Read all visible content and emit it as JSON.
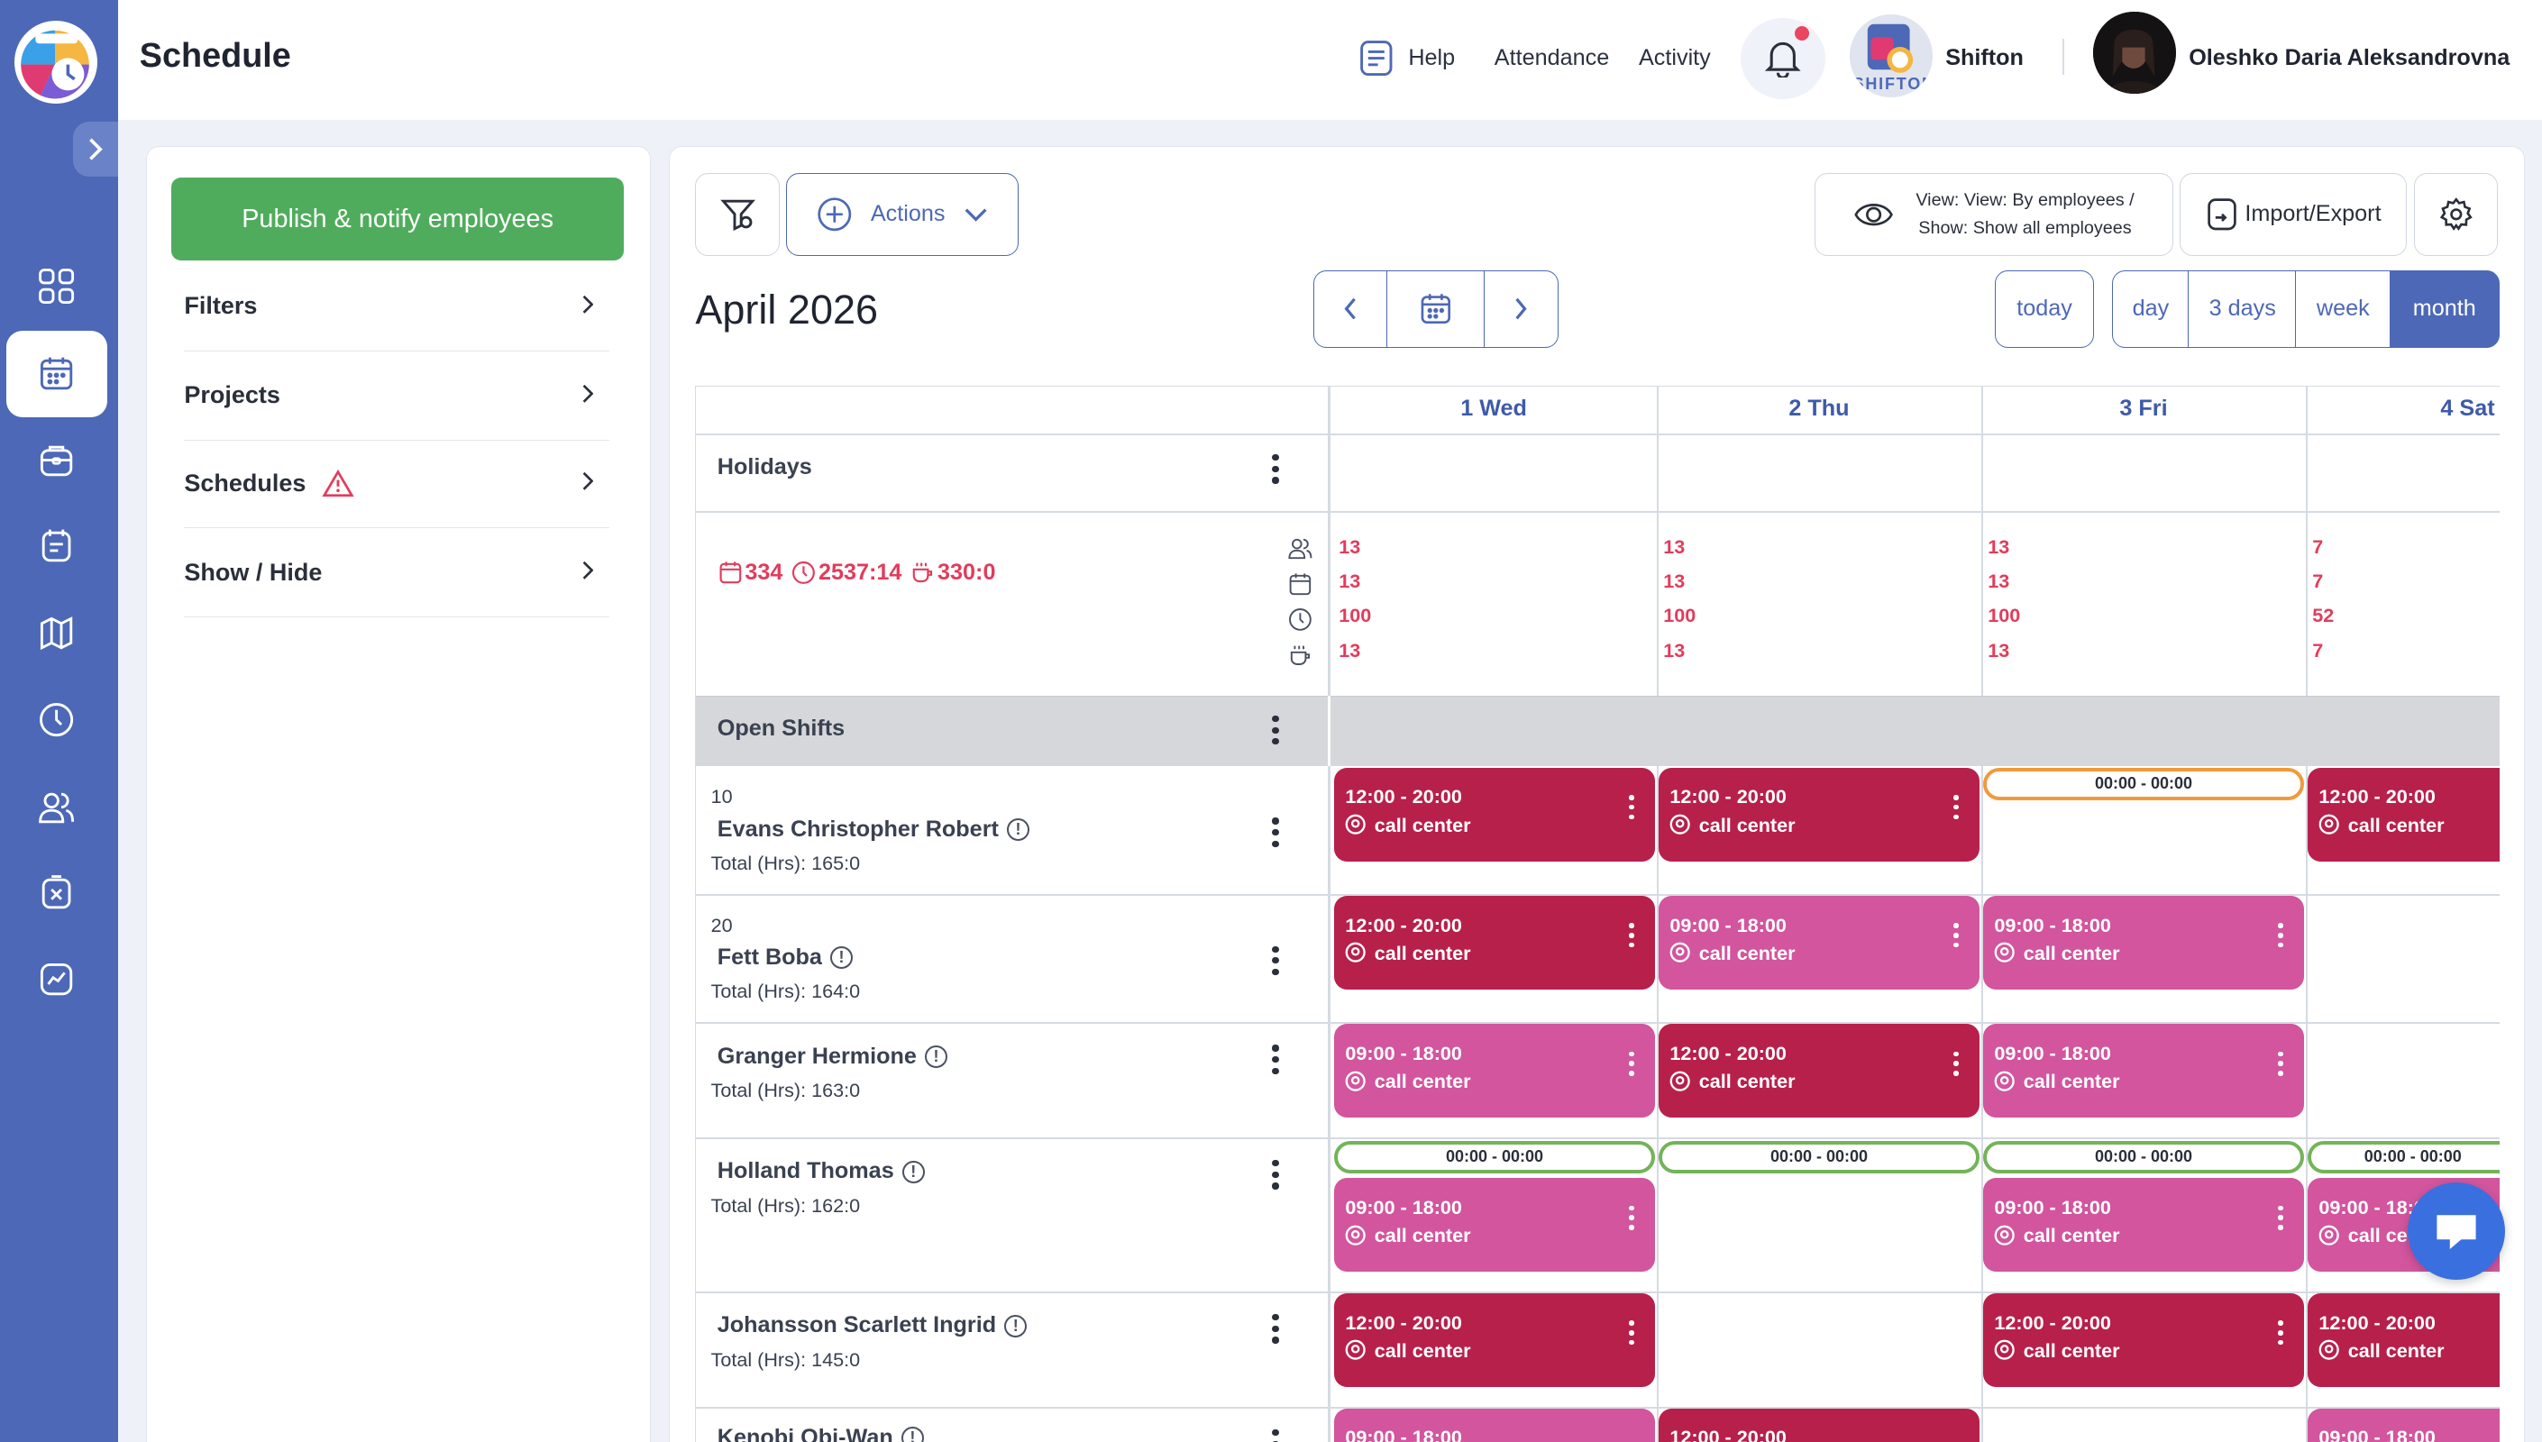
{
  "header": {
    "page_title": "Schedule",
    "help": "Help",
    "attendance": "Attendance",
    "activity": "Activity",
    "company_name": "Shifton",
    "company_logo_text": "SHIFTON",
    "user_name": "Oleshko Daria Aleksandrovna"
  },
  "sidebar_nav": [
    "dashboard-icon",
    "calendar-icon",
    "briefcase-icon",
    "clipboard-calendar-icon",
    "map-icon",
    "clock-icon",
    "users-icon",
    "cancel-document-icon",
    "chart-icon"
  ],
  "left_panel": {
    "publish": "Publish & notify employees",
    "items": [
      "Filters",
      "Projects",
      "Schedules",
      "Show / Hide"
    ]
  },
  "toolbar": {
    "actions": "Actions",
    "view_line1": "View: View: By employees /",
    "view_line2": "Show: Show all employees",
    "import_export": "Import/Export"
  },
  "calendar": {
    "month_title": "April 2026",
    "today": "today",
    "views": [
      "day",
      "3 days",
      "week",
      "month"
    ],
    "active_view": "month",
    "days": [
      "1 Wed",
      "2 Thu",
      "3 Fri",
      "4 Sat"
    ]
  },
  "rows": {
    "holidays": "Holidays",
    "summary": {
      "shifts": "334",
      "hours": "2537:14",
      "breaks": "330:0"
    },
    "day_stats": [
      [
        "13",
        "13",
        "100",
        "13"
      ],
      [
        "13",
        "13",
        "100",
        "13"
      ],
      [
        "13",
        "13",
        "100",
        "13"
      ],
      [
        "7",
        "7",
        "52",
        "7"
      ]
    ],
    "open_shifts": "Open Shifts",
    "employees": [
      {
        "number": "10",
        "name": "Evans Christopher Robert",
        "total": "Total (Hrs): 165:0"
      },
      {
        "number": "20",
        "name": "Fett Boba",
        "total": "Total (Hrs): 164:0"
      },
      {
        "number": "",
        "name": "Granger Hermione",
        "total": "Total (Hrs): 163:0"
      },
      {
        "number": "",
        "name": "Holland Thomas",
        "total": "Total (Hrs): 162:0"
      },
      {
        "number": "",
        "name": "Johansson Scarlett Ingrid",
        "total": "Total (Hrs): 145:0"
      },
      {
        "number": "",
        "name": "Kenobi Obi-Wan",
        "total": ""
      }
    ]
  },
  "shift_texts": {
    "t1220": "12:00 - 20:00",
    "t0918": "09:00 - 18:00",
    "t0000": "00:00 - 00:00",
    "location": "call center"
  },
  "colors": {
    "sidebar": "#4d68b6",
    "publish": "#4fac5c",
    "shift_dark": "#b7204b",
    "shift_pink": "#d2559e",
    "accent": "#3e5aa8",
    "stat_red": "#e23c5c"
  }
}
